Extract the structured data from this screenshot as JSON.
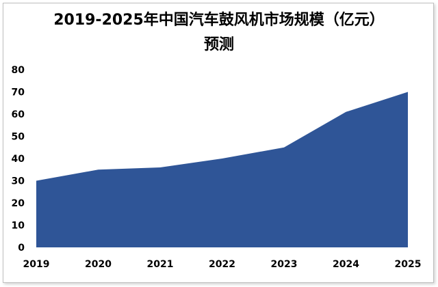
{
  "chart_data": {
    "type": "area",
    "title_line1": "2019-2025年中国汽车鼓风机市场规模（亿元）",
    "title_line2": "预测",
    "xlabel": "",
    "ylabel": "",
    "categories": [
      "2019",
      "2020",
      "2021",
      "2022",
      "2023",
      "2024",
      "2025"
    ],
    "values": [
      30,
      35,
      36,
      40,
      45,
      61,
      70
    ],
    "ylim": [
      0,
      80
    ],
    "yticks": [
      "0",
      "10",
      "20",
      "30",
      "40",
      "50",
      "60",
      "70",
      "80"
    ],
    "grid": false,
    "legend": "none",
    "fill_color": "#2f5597"
  }
}
